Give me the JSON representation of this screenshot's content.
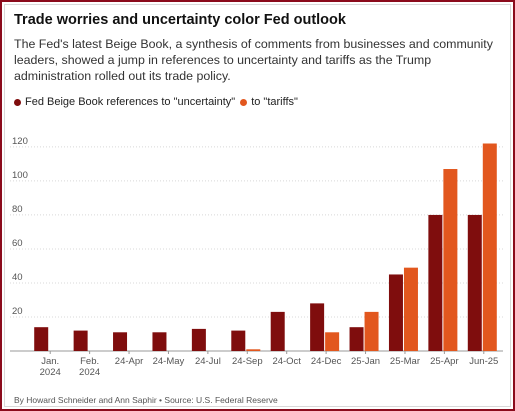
{
  "title": "Trade worries and uncertainty color Fed outlook",
  "subtitle": "The Fed's latest Beige Book, a synthesis of comments from businesses and community leaders, showed a jump in references to uncertainty and tariffs as the Trump administration rolled out its trade policy.",
  "source": "By Howard Schneider and Ann Saphir • Source: U.S. Federal Reserve",
  "colors": {
    "uncertainty": "#7f0d0d",
    "tariffs": "#e2571e",
    "grid": "#d8d8d8",
    "border": "#8b0b1c"
  },
  "chart_data": {
    "type": "bar",
    "categories": [
      [
        "Jan.",
        "2024"
      ],
      [
        "Feb.",
        "2024"
      ],
      [
        "24-Apr"
      ],
      [
        "24-May"
      ],
      [
        "24-Jul"
      ],
      [
        "24-Sep"
      ],
      [
        "24-Oct"
      ],
      [
        "24-Dec"
      ],
      [
        "25-Jan"
      ],
      [
        "25-Mar"
      ],
      [
        "25-Apr"
      ],
      [
        "Jun-25"
      ]
    ],
    "series": [
      {
        "name": "Fed Beige Book references to \"uncertainty\"",
        "color": "#7f0d0d",
        "values": [
          14,
          12,
          11,
          11,
          13,
          12,
          23,
          28,
          14,
          45,
          80,
          80
        ]
      },
      {
        "name": "to \"tariffs\"",
        "color": "#e2571e",
        "values": [
          0,
          0,
          0,
          0,
          0,
          1,
          0,
          11,
          23,
          49,
          107,
          122
        ]
      }
    ],
    "yticks": [
      20,
      40,
      60,
      80,
      100,
      120
    ],
    "ylim": [
      0,
      127
    ],
    "grid": true,
    "legend": "top-left"
  }
}
